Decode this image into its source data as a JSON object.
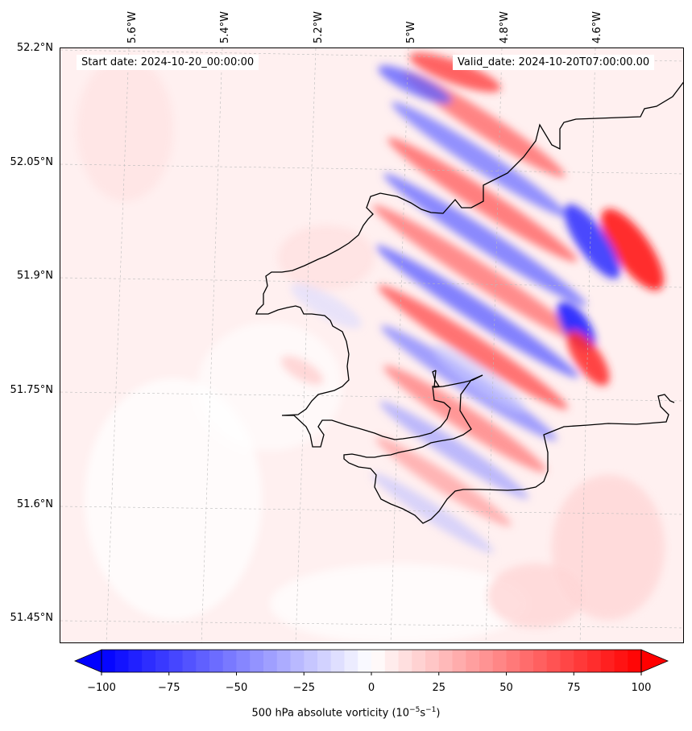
{
  "map": {
    "start_date": "Start date: 2024-10-20_00:00:00",
    "valid_date": "Valid_date: 2024-10-20T07:00:00.00",
    "lat_labels": [
      "52.2°N",
      "52.05°N",
      "51.9°N",
      "51.75°N",
      "51.6°N",
      "51.45°N"
    ],
    "lon_labels": [
      "5.6°W",
      "5.4°W",
      "5.2°W",
      "5°W",
      "4.8°W",
      "4.6°W"
    ],
    "colors": {
      "negative": "#0000ff",
      "positive": "#ff0000",
      "zero": "#ffffff",
      "coastline": "#000000",
      "grid": "#bbbbbb"
    }
  },
  "colorbar": {
    "label": "500 hPa absolute vorticity (10",
    "label_sup1": "−5",
    "label_mid": "s",
    "label_sup2": "−1",
    "label_end": ")",
    "tick_labels": [
      "−100",
      "−75",
      "−50",
      "−25",
      "0",
      "25",
      "50",
      "75",
      "100"
    ],
    "range": [
      -100,
      100
    ],
    "extend": "both"
  }
}
